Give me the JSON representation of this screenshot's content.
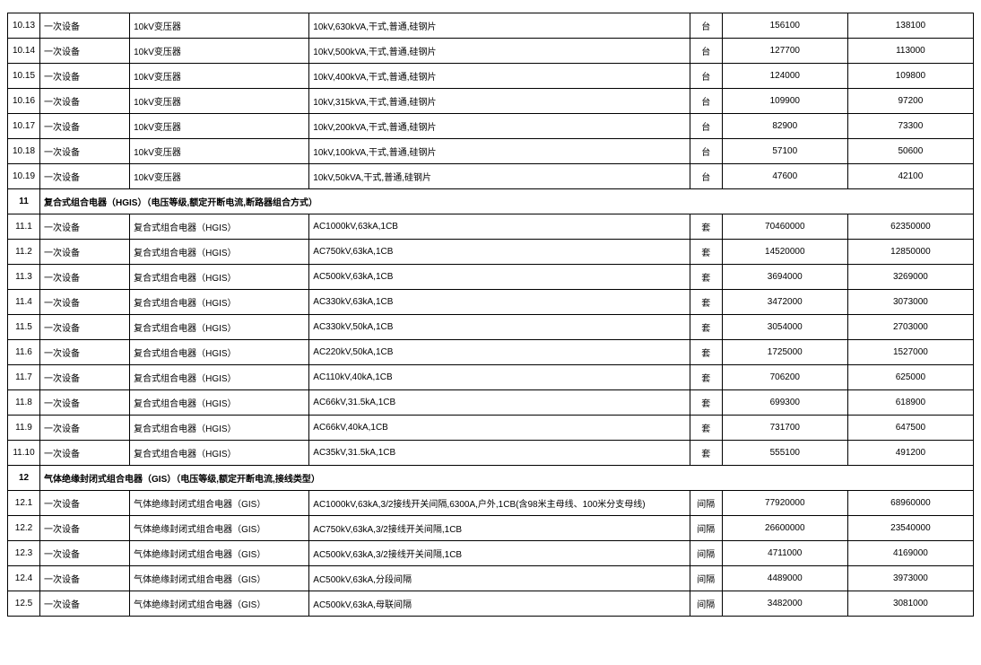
{
  "columns": {
    "idx": "col-idx",
    "cat": "col-cat",
    "name": "col-name",
    "spec": "col-spec",
    "unit": "col-unit",
    "p1": "col-p1",
    "p2": "col-p2"
  },
  "rows": [
    {
      "type": "data",
      "idx": "10.13",
      "cat": "一次设备",
      "name": "10kV变压器",
      "spec": "10kV,630kVA,干式,普通,硅钢片",
      "unit": "台",
      "p1": "156100",
      "p2": "138100"
    },
    {
      "type": "data",
      "idx": "10.14",
      "cat": "一次设备",
      "name": "10kV变压器",
      "spec": "10kV,500kVA,干式,普通,硅钢片",
      "unit": "台",
      "p1": "127700",
      "p2": "113000"
    },
    {
      "type": "data",
      "idx": "10.15",
      "cat": "一次设备",
      "name": "10kV变压器",
      "spec": "10kV,400kVA,干式,普通,硅钢片",
      "unit": "台",
      "p1": "124000",
      "p2": "109800"
    },
    {
      "type": "data",
      "idx": "10.16",
      "cat": "一次设备",
      "name": "10kV变压器",
      "spec": "10kV,315kVA,干式,普通,硅钢片",
      "unit": "台",
      "p1": "109900",
      "p2": "97200"
    },
    {
      "type": "data",
      "idx": "10.17",
      "cat": "一次设备",
      "name": "10kV变压器",
      "spec": "10kV,200kVA,干式,普通,硅钢片",
      "unit": "台",
      "p1": "82900",
      "p2": "73300"
    },
    {
      "type": "data",
      "idx": "10.18",
      "cat": "一次设备",
      "name": "10kV变压器",
      "spec": "10kV,100kVA,干式,普通,硅钢片",
      "unit": "台",
      "p1": "57100",
      "p2": "50600"
    },
    {
      "type": "data",
      "idx": "10.19",
      "cat": "一次设备",
      "name": "10kV变压器",
      "spec": "10kV,50kVA,干式,普通,硅钢片",
      "unit": "台",
      "p1": "47600",
      "p2": "42100"
    },
    {
      "type": "section",
      "idx": "11",
      "title": "复合式组合电器（HGIS）（电压等级,额定开断电流,断路器组合方式）"
    },
    {
      "type": "data",
      "idx": "11.1",
      "cat": "一次设备",
      "name": "复合式组合电器（HGIS）",
      "spec": "AC1000kV,63kA,1CB",
      "unit": "套",
      "p1": "70460000",
      "p2": "62350000"
    },
    {
      "type": "data",
      "idx": "11.2",
      "cat": "一次设备",
      "name": "复合式组合电器（HGIS）",
      "spec": "AC750kV,63kA,1CB",
      "unit": "套",
      "p1": "14520000",
      "p2": "12850000"
    },
    {
      "type": "data",
      "idx": "11.3",
      "cat": "一次设备",
      "name": "复合式组合电器（HGIS）",
      "spec": "AC500kV,63kA,1CB",
      "unit": "套",
      "p1": "3694000",
      "p2": "3269000"
    },
    {
      "type": "data",
      "idx": "11.4",
      "cat": "一次设备",
      "name": "复合式组合电器（HGIS）",
      "spec": "AC330kV,63kA,1CB",
      "unit": "套",
      "p1": "3472000",
      "p2": "3073000"
    },
    {
      "type": "data",
      "idx": "11.5",
      "cat": "一次设备",
      "name": "复合式组合电器（HGIS）",
      "spec": "AC330kV,50kA,1CB",
      "unit": "套",
      "p1": "3054000",
      "p2": "2703000"
    },
    {
      "type": "data",
      "idx": "11.6",
      "cat": "一次设备",
      "name": "复合式组合电器（HGIS）",
      "spec": "AC220kV,50kA,1CB",
      "unit": "套",
      "p1": "1725000",
      "p2": "1527000"
    },
    {
      "type": "data",
      "idx": "11.7",
      "cat": "一次设备",
      "name": "复合式组合电器（HGIS）",
      "spec": "AC110kV,40kA,1CB",
      "unit": "套",
      "p1": "706200",
      "p2": "625000"
    },
    {
      "type": "data",
      "idx": "11.8",
      "cat": "一次设备",
      "name": "复合式组合电器（HGIS）",
      "spec": "AC66kV,31.5kA,1CB",
      "unit": "套",
      "p1": "699300",
      "p2": "618900"
    },
    {
      "type": "data",
      "idx": "11.9",
      "cat": "一次设备",
      "name": "复合式组合电器（HGIS）",
      "spec": "AC66kV,40kA,1CB",
      "unit": "套",
      "p1": "731700",
      "p2": "647500"
    },
    {
      "type": "data",
      "idx": "11.10",
      "cat": "一次设备",
      "name": "复合式组合电器（HGIS）",
      "spec": "AC35kV,31.5kA,1CB",
      "unit": "套",
      "p1": "555100",
      "p2": "491200"
    },
    {
      "type": "section",
      "idx": "12",
      "title": "气体绝缘封闭式组合电器（GIS）（电压等级,额定开断电流,接线类型）"
    },
    {
      "type": "data",
      "idx": "12.1",
      "cat": "一次设备",
      "name": "气体绝缘封闭式组合电器（GIS）",
      "spec": "AC1000kV,63kA,3/2接线开关间隔,6300A,户外,1CB(含98米主母线、100米分支母线)",
      "unit": "间隔",
      "p1": "77920000",
      "p2": "68960000"
    },
    {
      "type": "data",
      "idx": "12.2",
      "cat": "一次设备",
      "name": "气体绝缘封闭式组合电器（GIS）",
      "spec": "AC750kV,63kA,3/2接线开关间隔,1CB",
      "unit": "间隔",
      "p1": "26600000",
      "p2": "23540000"
    },
    {
      "type": "data",
      "idx": "12.3",
      "cat": "一次设备",
      "name": "气体绝缘封闭式组合电器（GIS）",
      "spec": "AC500kV,63kA,3/2接线开关间隔,1CB",
      "unit": "间隔",
      "p1": "4711000",
      "p2": "4169000"
    },
    {
      "type": "data",
      "idx": "12.4",
      "cat": "一次设备",
      "name": "气体绝缘封闭式组合电器（GIS）",
      "spec": "AC500kV,63kA,分段间隔",
      "unit": "间隔",
      "p1": "4489000",
      "p2": "3973000"
    },
    {
      "type": "data",
      "idx": "12.5",
      "cat": "一次设备",
      "name": "气体绝缘封闭式组合电器（GIS）",
      "spec": "AC500kV,63kA,母联间隔",
      "unit": "间隔",
      "p1": "3482000",
      "p2": "3081000"
    }
  ]
}
